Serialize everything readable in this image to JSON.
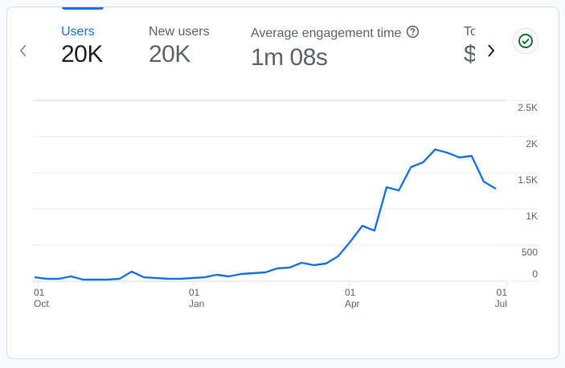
{
  "metrics": [
    {
      "label": "Users",
      "value": "20K",
      "active": true
    },
    {
      "label": "New users",
      "value": "20K",
      "active": false
    },
    {
      "label": "Average engagement time",
      "value": "1m 08s",
      "active": false,
      "has_help": true
    },
    {
      "label": "To",
      "value": "$",
      "active": false,
      "truncated": true
    }
  ],
  "nav": {
    "prev": "chevron-left",
    "next": "chevron-right"
  },
  "status_icon": "check-circle",
  "colors": {
    "accent": "#1a73e8",
    "line": "#1a73e8",
    "check": "#137333",
    "grid": "#e8eaed",
    "axis_text": "#5f6368"
  },
  "chart_data": {
    "type": "line",
    "title": "Users",
    "xlabel": "",
    "ylabel": "",
    "ylim": [
      0,
      2500
    ],
    "y_ticks": [
      "0",
      "500",
      "1K",
      "1.5K",
      "2K",
      "2.5K"
    ],
    "y_tick_values": [
      0,
      500,
      1000,
      1500,
      2000,
      2500
    ],
    "x_ticks": [
      {
        "day": "01",
        "month": "Oct"
      },
      {
        "day": "01",
        "month": "Jan"
      },
      {
        "day": "01",
        "month": "Apr"
      },
      {
        "day": "01",
        "month": "Jul"
      }
    ],
    "grid": true,
    "legend": "none",
    "series": [
      {
        "name": "Users",
        "granularity": "weekly",
        "values": [
          55,
          33,
          33,
          67,
          22,
          22,
          22,
          33,
          133,
          55,
          44,
          33,
          33,
          44,
          55,
          89,
          67,
          100,
          111,
          122,
          178,
          189,
          256,
          222,
          244,
          344,
          544,
          767,
          700,
          1300,
          1256,
          1578,
          1644,
          1822,
          1778,
          1711,
          1733,
          1378,
          1278
        ]
      }
    ]
  }
}
